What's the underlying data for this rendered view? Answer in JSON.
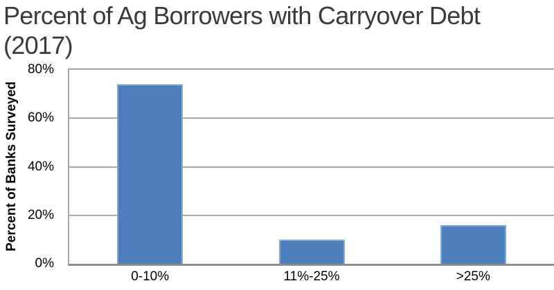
{
  "chart_data": {
    "type": "bar",
    "title": "Percent of Ag Borrowers with Carryover Debt (2017)",
    "xlabel": "",
    "ylabel": "Percent of Banks Surveyed",
    "categories": [
      "0-10%",
      "11%-25%",
      ">25%"
    ],
    "values": [
      74,
      10,
      16
    ],
    "ylim": [
      0,
      80
    ],
    "yticks": [
      0,
      20,
      40,
      60,
      80
    ],
    "ytick_labels": [
      "0%",
      "20%",
      "40%",
      "60%",
      "80%"
    ],
    "grid": true,
    "legend_position": "none",
    "bar_color": "#4d7fbf",
    "bar_edge_color": "#84aad6",
    "gridline_color": "#a6a6a6",
    "axis_line_color": "#8c8c8c",
    "title_color": "#3a3a3a",
    "tick_label_color": "#000000"
  }
}
